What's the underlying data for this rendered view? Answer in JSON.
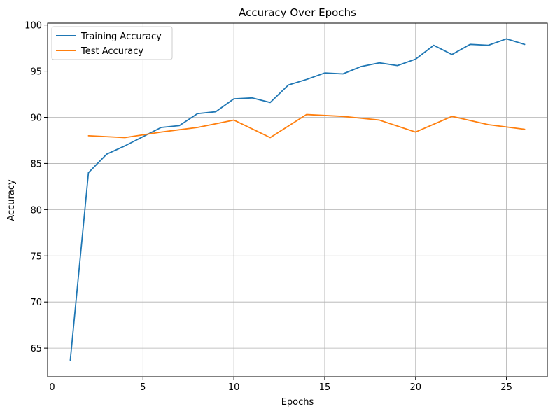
{
  "chart_data": {
    "type": "line",
    "title": "Accuracy Over Epochs",
    "xlabel": "Epochs",
    "ylabel": "Accuracy",
    "xlim": [
      -0.25,
      27.25
    ],
    "ylim": [
      61.9,
      100.2
    ],
    "xticks": [
      0,
      5,
      10,
      15,
      20,
      25
    ],
    "yticks": [
      65,
      70,
      75,
      80,
      85,
      90,
      95,
      100
    ],
    "grid": true,
    "legend_position": "upper-left",
    "series": [
      {
        "name": "Training Accuracy",
        "color": "#1f77b4",
        "x": [
          1,
          2,
          3,
          4,
          5,
          6,
          7,
          8,
          9,
          10,
          11,
          12,
          13,
          14,
          15,
          16,
          17,
          18,
          19,
          20,
          21,
          22,
          23,
          24,
          25,
          26
        ],
        "y": [
          63.7,
          84.0,
          86.0,
          86.9,
          87.9,
          88.9,
          89.1,
          90.4,
          90.6,
          92.0,
          92.1,
          91.6,
          93.5,
          94.1,
          94.8,
          94.7,
          95.5,
          95.9,
          95.6,
          96.3,
          97.8,
          96.8,
          97.9,
          97.8,
          98.5,
          97.9
        ]
      },
      {
        "name": "Test Accuracy",
        "color": "#ff7f0e",
        "x": [
          2,
          4,
          6,
          8,
          10,
          12,
          14,
          16,
          18,
          20,
          22,
          24,
          26
        ],
        "y": [
          88.0,
          87.8,
          88.4,
          88.9,
          89.7,
          87.8,
          90.3,
          90.1,
          89.7,
          88.4,
          90.1,
          89.2,
          88.7
        ]
      }
    ]
  }
}
